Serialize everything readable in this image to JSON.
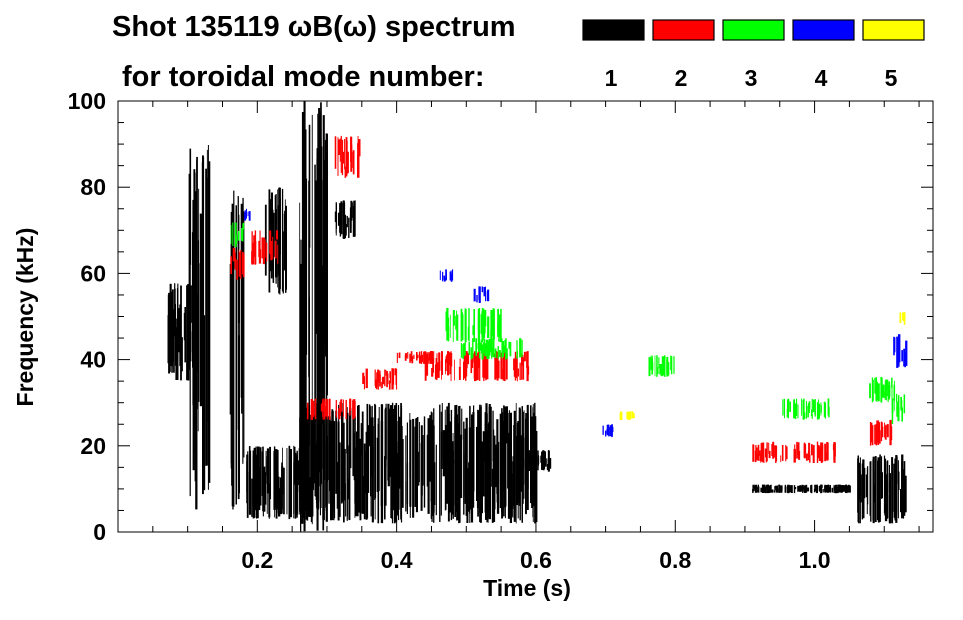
{
  "chart_data": {
    "type": "spectrogram",
    "title_line1": "Shot 135119 ωB(ω) spectrum",
    "title_line2": "for toroidal mode number:",
    "xlabel": "Time (s)",
    "ylabel": "Frequency (kHz)",
    "xlim": [
      0.0,
      1.17
    ],
    "ylim": [
      0,
      100
    ],
    "x_ticks": [
      {
        "value": 0.2,
        "label": "0.2"
      },
      {
        "value": 0.4,
        "label": "0.4"
      },
      {
        "value": 0.6,
        "label": "0.6"
      },
      {
        "value": 0.8,
        "label": "0.8"
      },
      {
        "value": 1.0,
        "label": "1.0"
      }
    ],
    "y_ticks": [
      {
        "value": 0,
        "label": "0"
      },
      {
        "value": 20,
        "label": "20"
      },
      {
        "value": 40,
        "label": "40"
      },
      {
        "value": 60,
        "label": "60"
      },
      {
        "value": 80,
        "label": "80"
      },
      {
        "value": 100,
        "label": "100"
      }
    ],
    "legend": [
      {
        "mode": "1",
        "color": "#000000"
      },
      {
        "mode": "2",
        "color": "#ff0000"
      },
      {
        "mode": "3",
        "color": "#00ff00"
      },
      {
        "mode": "4",
        "color": "#0000ff"
      },
      {
        "mode": "5",
        "color": "#ffff00"
      }
    ],
    "series": [
      {
        "mode": "1",
        "color": "#000000",
        "bands": [
          {
            "t": [
              0.07,
              0.12
            ],
            "f": [
              35,
              58
            ]
          },
          {
            "t": [
              0.1,
              0.13
            ],
            "f": [
              5,
              90
            ]
          },
          {
            "t": [
              0.16,
              0.18
            ],
            "f": [
              5,
              80
            ]
          },
          {
            "t": [
              0.18,
              0.26
            ],
            "f": [
              3,
              20
            ]
          },
          {
            "t": [
              0.21,
              0.24
            ],
            "f": [
              55,
              80
            ]
          },
          {
            "t": [
              0.26,
              0.3
            ],
            "f": [
              0,
              100
            ]
          },
          {
            "t": [
              0.26,
              0.6
            ],
            "f": [
              2,
              30
            ]
          },
          {
            "t": [
              0.31,
              0.34
            ],
            "f": [
              68,
              77
            ]
          },
          {
            "t": [
              0.58,
              0.62
            ],
            "f": [
              14,
              19
            ]
          },
          {
            "t": [
              0.91,
              1.05
            ],
            "f": [
              9,
              11
            ]
          },
          {
            "t": [
              1.06,
              1.13
            ],
            "f": [
              2,
              18
            ]
          }
        ]
      },
      {
        "mode": "2",
        "color": "#ff0000",
        "bands": [
          {
            "t": [
              0.16,
              0.18
            ],
            "f": [
              58,
              66
            ]
          },
          {
            "t": [
              0.19,
              0.23
            ],
            "f": [
              62,
              70
            ]
          },
          {
            "t": [
              0.31,
              0.35
            ],
            "f": [
              82,
              92
            ]
          },
          {
            "t": [
              0.27,
              0.34
            ],
            "f": [
              26,
              31
            ]
          },
          {
            "t": [
              0.35,
              0.4
            ],
            "f": [
              33,
              38
            ]
          },
          {
            "t": [
              0.4,
              0.45
            ],
            "f": [
              39,
              42
            ]
          },
          {
            "t": [
              0.44,
              0.59
            ],
            "f": [
              35,
              42
            ]
          },
          {
            "t": [
              0.91,
              1.03
            ],
            "f": [
              16,
              21
            ]
          },
          {
            "t": [
              1.07,
              1.11
            ],
            "f": [
              20,
              26
            ]
          }
        ]
      },
      {
        "mode": "3",
        "color": "#00ff00",
        "bands": [
          {
            "t": [
              0.16,
              0.18
            ],
            "f": [
              66,
              72
            ]
          },
          {
            "t": [
              0.47,
              0.55
            ],
            "f": [
              44,
              52
            ]
          },
          {
            "t": [
              0.49,
              0.58
            ],
            "f": [
              40,
              45
            ]
          },
          {
            "t": [
              0.76,
              0.8
            ],
            "f": [
              36,
              41
            ]
          },
          {
            "t": [
              0.95,
              1.02
            ],
            "f": [
              26,
              31
            ]
          },
          {
            "t": [
              1.07,
              1.12
            ],
            "f": [
              30,
              36
            ]
          },
          {
            "t": [
              1.11,
              1.13
            ],
            "f": [
              25,
              32
            ]
          }
        ]
      },
      {
        "mode": "4",
        "color": "#0000ff",
        "bands": [
          {
            "t": [
              0.18,
              0.19
            ],
            "f": [
              72,
              75
            ]
          },
          {
            "t": [
              0.46,
              0.48
            ],
            "f": [
              58,
              61
            ]
          },
          {
            "t": [
              0.51,
              0.53
            ],
            "f": [
              53,
              57
            ]
          },
          {
            "t": [
              0.69,
              0.71
            ],
            "f": [
              22,
              25
            ]
          },
          {
            "t": [
              1.11,
              1.13
            ],
            "f": [
              38,
              46
            ]
          }
        ]
      },
      {
        "mode": "5",
        "color": "#ffff00",
        "bands": [
          {
            "t": [
              0.72,
              0.74
            ],
            "f": [
              26,
              28
            ]
          },
          {
            "t": [
              1.12,
              1.13
            ],
            "f": [
              48,
              51
            ]
          }
        ]
      }
    ]
  }
}
